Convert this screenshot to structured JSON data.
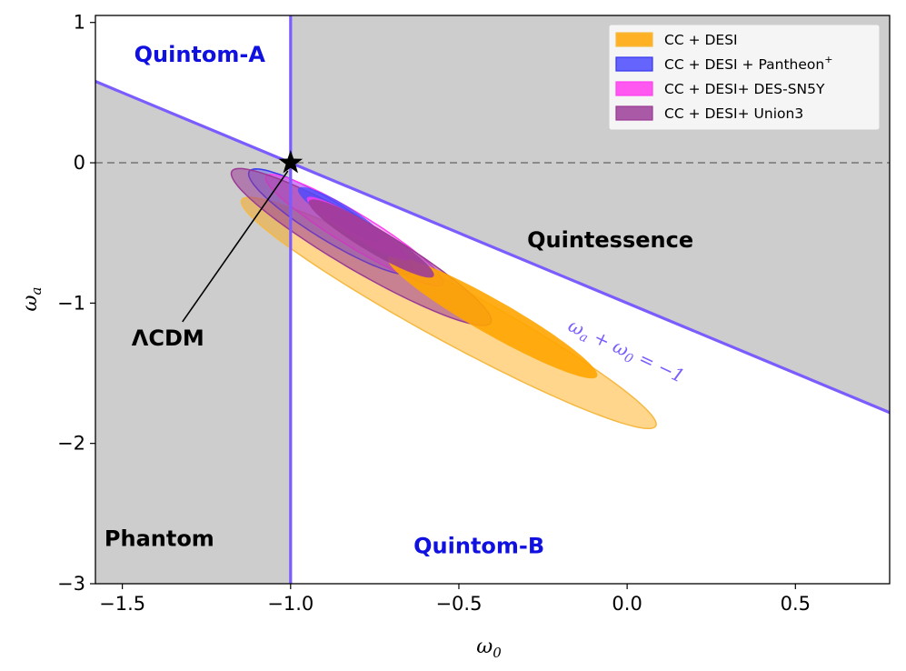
{
  "chart_data": {
    "type": "contour",
    "xlabel": "ω",
    "xlabel_sub": "0",
    "ylabel": "ω",
    "ylabel_sub": "a",
    "xlim": [
      -1.58,
      0.78
    ],
    "ylim": [
      -3.0,
      1.05
    ],
    "xticks": [
      -1.5,
      -1.0,
      -0.5,
      0.0,
      0.5
    ],
    "xtick_labels": [
      "−1.5",
      "−1.0",
      "−0.5",
      "0.0",
      "0.5"
    ],
    "yticks": [
      1,
      0,
      -1,
      -2,
      -3
    ],
    "ytick_labels": [
      "1",
      "0",
      "−1",
      "−2",
      "−3"
    ],
    "colors": {
      "shade": "#cdcdcd",
      "boundary": "#7b5cff",
      "dashed": "#8a8a8a",
      "quintom_text": "#1010e0",
      "dark_text": "#000000"
    },
    "region_labels": [
      {
        "id": "quintom-a",
        "text": "Quintom-A",
        "x": -1.27,
        "y": 0.77,
        "color": "#1010e0"
      },
      {
        "id": "quintom-b",
        "text": "Quintom-B",
        "x": -0.44,
        "y": -2.73,
        "color": "#1010e0"
      },
      {
        "id": "phantom",
        "text": "Phantom",
        "x": -1.39,
        "y": -2.68,
        "color": "#000000"
      },
      {
        "id": "quintessence",
        "text": "Quintessence",
        "x": -0.05,
        "y": -0.55,
        "color": "#000000"
      }
    ],
    "boundary_line": {
      "equation": "ω_a + ω_0 = −1",
      "label_parts": [
        "ω",
        "a",
        " + ω",
        "0",
        " = −1"
      ],
      "label_x": -0.01,
      "label_y": -1.38,
      "label_rotation_deg": 25
    },
    "lcdm": {
      "label": "ΛCDM",
      "label_x": -1.37,
      "label_y": -1.25,
      "point_x": -1.0,
      "point_y": 0.0
    },
    "series": [
      {
        "name": "CC + DESI",
        "legend_label": "CC + DESI",
        "legend_sup": "",
        "fill": "#ffa500",
        "stroke": "#f5b942",
        "outer": {
          "cx": -0.53,
          "cy": -1.07,
          "rx": 1.02,
          "ry": 0.135,
          "angle": -53.5,
          "opacity": 0.45
        },
        "inner": {
          "cx": -0.4,
          "cy": -1.1,
          "rx": 0.53,
          "ry": 0.083,
          "angle": -55,
          "opacity": 0.9
        }
      },
      {
        "name": "CC + DESI + Pantheon+",
        "legend_label": "CC + DESI + Pantheon",
        "legend_sup": "+",
        "fill": "#4b4bff",
        "stroke": "#3535ee",
        "outer": {
          "cx": -0.88,
          "cy": -0.42,
          "rx": 0.44,
          "ry": 0.088,
          "angle": -58,
          "opacity": 0.4
        },
        "inner": {
          "cx": -0.85,
          "cy": -0.37,
          "rx": 0.23,
          "ry": 0.048,
          "angle": -58,
          "opacity": 0.8
        }
      },
      {
        "name": "CC + DESI+ DES-SN5Y",
        "legend_label": "CC + DESI+ DES-SN5Y",
        "legend_sup": "",
        "fill": "#ff3cf0",
        "stroke": "#ff40f0",
        "outer": {
          "cx": -0.81,
          "cy": -0.48,
          "rx": 0.47,
          "ry": 0.077,
          "angle": -57,
          "opacity": 0.4
        },
        "inner": {
          "cx": -0.8,
          "cy": -0.47,
          "rx": 0.27,
          "ry": 0.046,
          "angle": -57,
          "opacity": 0.8
        }
      },
      {
        "name": "CC + DESI+ Union3",
        "legend_label": "CC + DESI+ Union3",
        "legend_sup": "",
        "fill": "#9b3d96",
        "stroke": "#9a3a94",
        "outer": {
          "cx": -0.79,
          "cy": -0.6,
          "rx": 0.67,
          "ry": 0.114,
          "angle": -56,
          "opacity": 0.55
        },
        "inner": {
          "cx": -0.76,
          "cy": -0.54,
          "rx": 0.33,
          "ry": 0.058,
          "angle": -57,
          "opacity": 0.9
        }
      }
    ]
  }
}
